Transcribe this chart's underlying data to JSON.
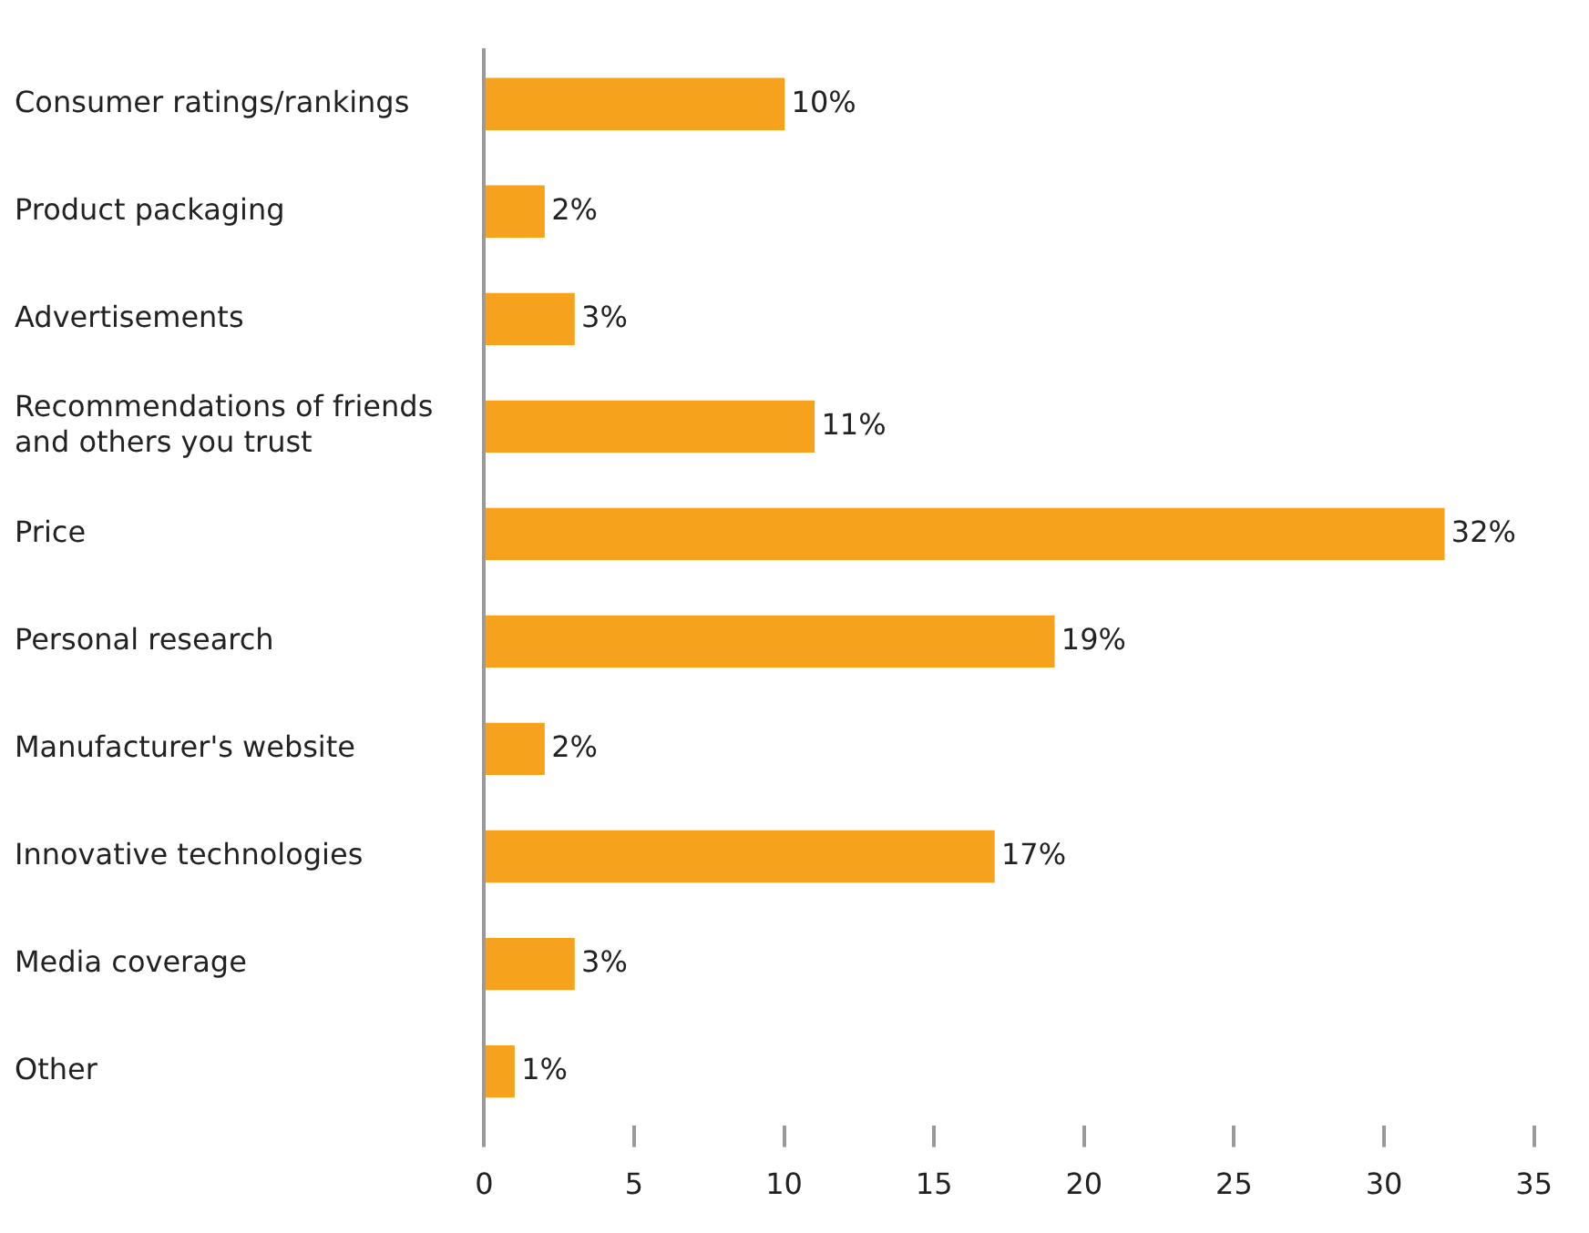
{
  "chart_data": {
    "type": "bar",
    "orientation": "horizontal",
    "categories": [
      "Consumer ratings/rankings",
      "Product packaging",
      "Advertisements",
      "Recommendations of friends and others you trust",
      "Price",
      "Personal research",
      "Manufacturer's website",
      "Innovative technologies",
      "Media coverage",
      "Other"
    ],
    "values": [
      10,
      2,
      3,
      11,
      32,
      19,
      2,
      17,
      3,
      1
    ],
    "value_labels": [
      "10%",
      "2%",
      "3%",
      "11%",
      "32%",
      "19%",
      "2%",
      "17%",
      "3%",
      "1%"
    ],
    "color": "#f7a21c",
    "xlim": [
      0,
      35
    ],
    "xticks": [
      0,
      5,
      10,
      15,
      20,
      25,
      30,
      35
    ]
  }
}
